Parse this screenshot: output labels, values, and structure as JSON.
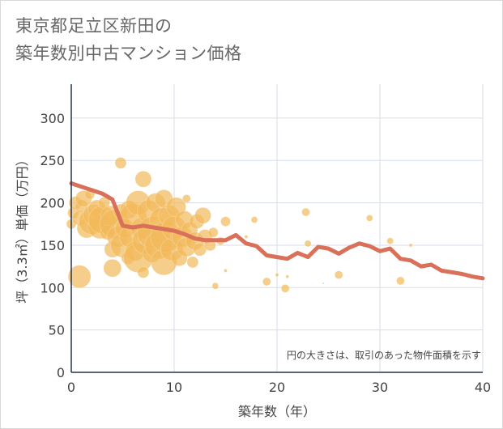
{
  "header": {
    "title_line1": "東京都足立区新田の",
    "title_line2": "築年数別中古マンション価格"
  },
  "chart_data": {
    "type": "scatter",
    "title": "東京都足立区新田の築年数別中古マンション価格",
    "xlabel": "築年数（年）",
    "ylabel": "坪（3.3㎡）単価（万円）",
    "xlim": [
      0,
      40
    ],
    "ylim": [
      0,
      340
    ],
    "x_ticks": [
      0,
      10,
      20,
      30,
      40
    ],
    "y_ticks": [
      0,
      50,
      100,
      150,
      200,
      250,
      300
    ],
    "grid": true,
    "annotation": "円の大きさは、取引のあった物件面積を示す",
    "colors": {
      "bubble": "#f2b95a",
      "trend": "#d9705a",
      "grid": "#d6dde8",
      "axis": "#24344d"
    },
    "bubbles": [
      {
        "x": 0.0,
        "y": 175,
        "r": 6
      },
      {
        "x": 0.2,
        "y": 188,
        "r": 7
      },
      {
        "x": 0.4,
        "y": 200,
        "r": 8
      },
      {
        "x": 0.8,
        "y": 113,
        "r": 14
      },
      {
        "x": 0.8,
        "y": 182,
        "r": 9
      },
      {
        "x": 1.0,
        "y": 196,
        "r": 8
      },
      {
        "x": 1.2,
        "y": 205,
        "r": 10
      },
      {
        "x": 1.5,
        "y": 170,
        "r": 12
      },
      {
        "x": 1.8,
        "y": 210,
        "r": 6
      },
      {
        "x": 2.0,
        "y": 178,
        "r": 16
      },
      {
        "x": 2.2,
        "y": 186,
        "r": 13
      },
      {
        "x": 2.5,
        "y": 193,
        "r": 11
      },
      {
        "x": 2.8,
        "y": 172,
        "r": 15
      },
      {
        "x": 3.0,
        "y": 180,
        "r": 17
      },
      {
        "x": 3.2,
        "y": 200,
        "r": 7
      },
      {
        "x": 3.5,
        "y": 165,
        "r": 9
      },
      {
        "x": 3.8,
        "y": 185,
        "r": 12
      },
      {
        "x": 4.0,
        "y": 145,
        "r": 10
      },
      {
        "x": 4.0,
        "y": 123,
        "r": 11
      },
      {
        "x": 4.2,
        "y": 175,
        "r": 18
      },
      {
        "x": 4.5,
        "y": 160,
        "r": 13
      },
      {
        "x": 4.8,
        "y": 190,
        "r": 9
      },
      {
        "x": 4.8,
        "y": 247,
        "r": 7
      },
      {
        "x": 5.0,
        "y": 150,
        "r": 15
      },
      {
        "x": 5.2,
        "y": 170,
        "r": 12
      },
      {
        "x": 5.5,
        "y": 135,
        "r": 8
      },
      {
        "x": 5.6,
        "y": 192,
        "r": 11
      },
      {
        "x": 5.8,
        "y": 160,
        "r": 14
      },
      {
        "x": 6.0,
        "y": 183,
        "r": 17
      },
      {
        "x": 6.2,
        "y": 143,
        "r": 12
      },
      {
        "x": 6.5,
        "y": 200,
        "r": 15
      },
      {
        "x": 6.5,
        "y": 135,
        "r": 18
      },
      {
        "x": 6.8,
        "y": 170,
        "r": 13
      },
      {
        "x": 7.0,
        "y": 228,
        "r": 10
      },
      {
        "x": 7.0,
        "y": 118,
        "r": 7
      },
      {
        "x": 7.2,
        "y": 155,
        "r": 16
      },
      {
        "x": 7.5,
        "y": 190,
        "r": 14
      },
      {
        "x": 7.8,
        "y": 140,
        "r": 11
      },
      {
        "x": 8.0,
        "y": 165,
        "r": 20
      },
      {
        "x": 8.2,
        "y": 200,
        "r": 12
      },
      {
        "x": 8.5,
        "y": 150,
        "r": 17
      },
      {
        "x": 8.8,
        "y": 180,
        "r": 15
      },
      {
        "x": 9.0,
        "y": 130,
        "r": 16
      },
      {
        "x": 9.0,
        "y": 205,
        "r": 11
      },
      {
        "x": 9.2,
        "y": 160,
        "r": 19
      },
      {
        "x": 9.5,
        "y": 185,
        "r": 13
      },
      {
        "x": 9.8,
        "y": 145,
        "r": 14
      },
      {
        "x": 10.0,
        "y": 170,
        "r": 15
      },
      {
        "x": 10.2,
        "y": 195,
        "r": 12
      },
      {
        "x": 10.5,
        "y": 135,
        "r": 10
      },
      {
        "x": 10.8,
        "y": 160,
        "r": 13
      },
      {
        "x": 11.0,
        "y": 180,
        "r": 11
      },
      {
        "x": 11.2,
        "y": 205,
        "r": 5
      },
      {
        "x": 11.2,
        "y": 148,
        "r": 12
      },
      {
        "x": 11.5,
        "y": 168,
        "r": 10
      },
      {
        "x": 11.8,
        "y": 130,
        "r": 7
      },
      {
        "x": 12.0,
        "y": 155,
        "r": 11
      },
      {
        "x": 12.2,
        "y": 178,
        "r": 9
      },
      {
        "x": 12.5,
        "y": 145,
        "r": 8
      },
      {
        "x": 12.8,
        "y": 185,
        "r": 10
      },
      {
        "x": 13.0,
        "y": 160,
        "r": 9
      },
      {
        "x": 13.5,
        "y": 150,
        "r": 7
      },
      {
        "x": 13.8,
        "y": 165,
        "r": 6
      },
      {
        "x": 14.0,
        "y": 102,
        "r": 4
      },
      {
        "x": 14.5,
        "y": 155,
        "r": 5
      },
      {
        "x": 15.0,
        "y": 178,
        "r": 6
      },
      {
        "x": 15.0,
        "y": 120,
        "r": 2
      },
      {
        "x": 17.0,
        "y": 160,
        "r": 2
      },
      {
        "x": 17.8,
        "y": 180,
        "r": 4
      },
      {
        "x": 19.0,
        "y": 107,
        "r": 5
      },
      {
        "x": 20.0,
        "y": 115,
        "r": 2
      },
      {
        "x": 20.8,
        "y": 99,
        "r": 5
      },
      {
        "x": 21.0,
        "y": 113,
        "r": 2
      },
      {
        "x": 22.8,
        "y": 189,
        "r": 5
      },
      {
        "x": 23.0,
        "y": 152,
        "r": 4
      },
      {
        "x": 24.5,
        "y": 105,
        "r": 1
      },
      {
        "x": 26.0,
        "y": 115,
        "r": 5
      },
      {
        "x": 29.0,
        "y": 182,
        "r": 4
      },
      {
        "x": 31.0,
        "y": 155,
        "r": 4
      },
      {
        "x": 32.0,
        "y": 108,
        "r": 5
      },
      {
        "x": 33.0,
        "y": 150,
        "r": 2
      }
    ],
    "series": [
      {
        "type": "line",
        "x": [
          0,
          1,
          2,
          3,
          4,
          5,
          6,
          7,
          8,
          9,
          10,
          11,
          12,
          13,
          14,
          15,
          16,
          17,
          18,
          19,
          20,
          21,
          22,
          23,
          24,
          25,
          26,
          27,
          28,
          29,
          30,
          31,
          32,
          33,
          34,
          35,
          36,
          37,
          38,
          39,
          40
        ],
        "values": [
          223,
          219,
          215,
          211,
          204,
          173,
          171,
          173,
          171,
          169,
          167,
          163,
          158,
          156,
          156,
          156,
          162,
          152,
          149,
          138,
          136,
          134,
          141,
          136,
          148,
          146,
          140,
          147,
          152,
          149,
          143,
          146,
          134,
          132,
          125,
          127,
          120,
          118,
          116,
          113,
          111
        ]
      }
    ]
  }
}
